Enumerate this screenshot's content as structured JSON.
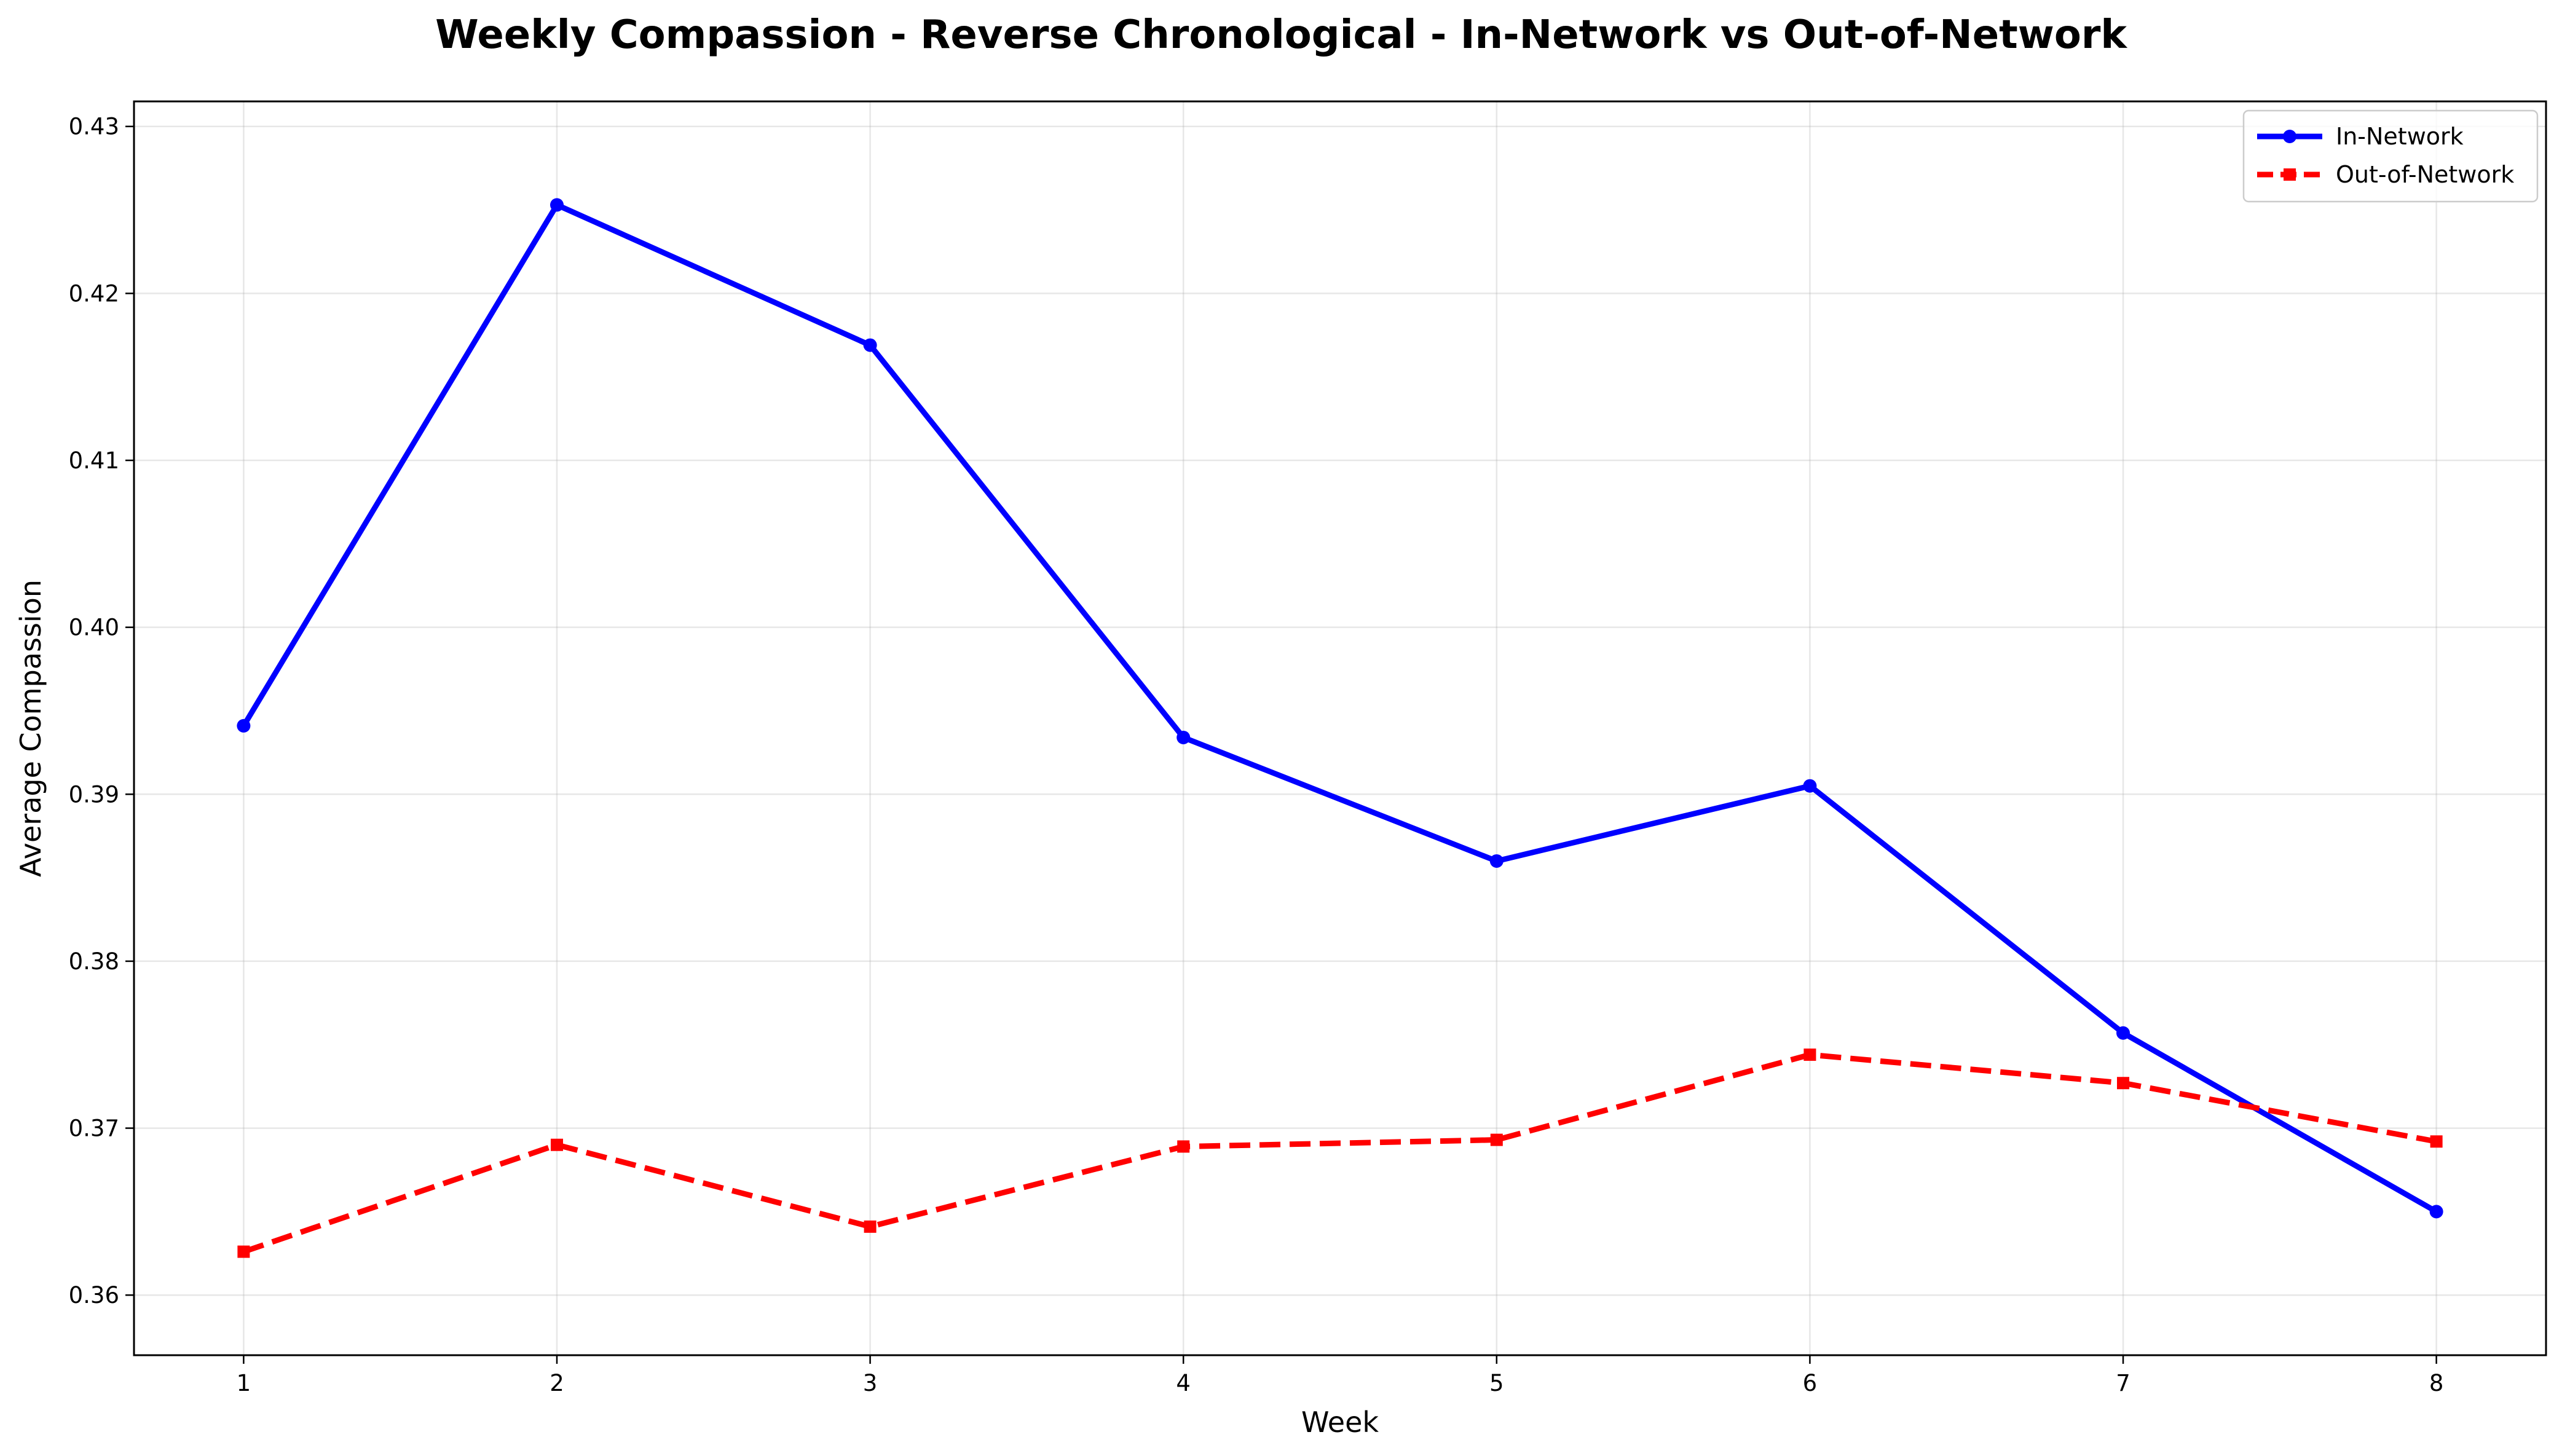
{
  "chart_data": {
    "type": "line",
    "title": "Weekly Compassion - Reverse Chronological - In-Network vs Out-of-Network",
    "xlabel": "Week",
    "ylabel": "Average Compassion",
    "x": [
      1,
      2,
      3,
      4,
      5,
      6,
      7,
      8
    ],
    "x_ticks": [
      "1",
      "2",
      "3",
      "4",
      "5",
      "6",
      "7",
      "8"
    ],
    "xlim": [
      0.65,
      8.35
    ],
    "ylim": [
      0.3564,
      0.4315
    ],
    "y_ticks": [
      0.36,
      0.37,
      0.38,
      0.39,
      0.4,
      0.41,
      0.42,
      0.43
    ],
    "y_tick_labels": [
      "0.36",
      "0.37",
      "0.38",
      "0.39",
      "0.40",
      "0.41",
      "0.42",
      "0.43"
    ],
    "grid": true,
    "legend_position": "top-right",
    "series": [
      {
        "name": "In-Network",
        "color": "#0000ff",
        "line_style": "solid",
        "marker": "circle",
        "values": [
          0.3941,
          0.4253,
          0.4169,
          0.3934,
          0.386,
          0.3905,
          0.3757,
          0.365
        ]
      },
      {
        "name": "Out-of-Network",
        "color": "#ff0000",
        "line_style": "dashed",
        "marker": "square",
        "values": [
          0.3626,
          0.369,
          0.3641,
          0.3689,
          0.3693,
          0.3744,
          0.3727,
          0.3692
        ]
      }
    ]
  }
}
